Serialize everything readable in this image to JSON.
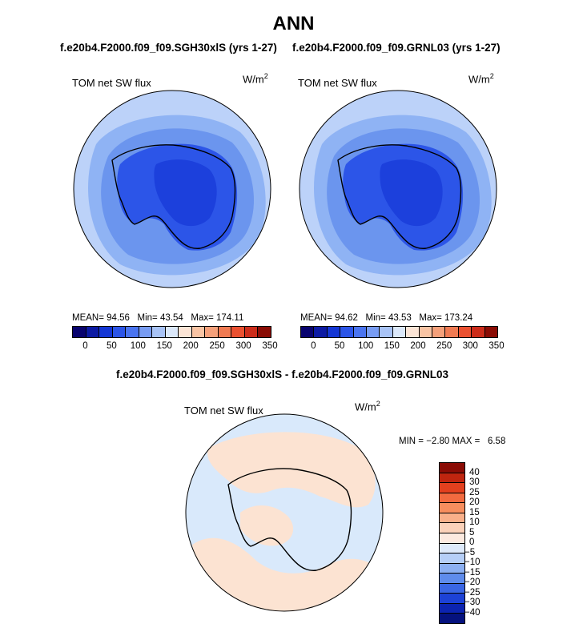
{
  "title": "ANN",
  "case_left": "f.e20b4.F2000.f09_f09.SGH30xlS (yrs 1-27)",
  "case_right": "f.e20b4.F2000.f09_f09.GRNL03 (yrs 1-27)",
  "diff_title": "f.e20b4.F2000.f09_f09.SGH30xlS - f.e20b4.F2000.f09_f09.GRNL03",
  "variable_label": "TOM net SW flux",
  "units": "W/m",
  "units_sup": "2",
  "panel_left": {
    "mean_label": "MEAN=",
    "mean": "94.56",
    "min_label": "Min=",
    "min": "43.54",
    "max_label": "Max=",
    "max": "174.11"
  },
  "panel_right": {
    "mean_label": "MEAN=",
    "mean": "94.62",
    "min_label": "Min=",
    "min": "43.53",
    "max_label": "Max=",
    "max": "173.24"
  },
  "panel_diff": {
    "min_label": "MIN =",
    "min": "−2.80",
    "max_label": "MAX =",
    "max": "6.58"
  },
  "colorbar_main": {
    "colors": [
      "#08036e",
      "#0c1aa3",
      "#1436d4",
      "#2c55e8",
      "#4a74f0",
      "#789cf3",
      "#a8c3f6",
      "#dbe8fa",
      "#fce5d6",
      "#f9c4a4",
      "#f5a07a",
      "#f07a52",
      "#ea5030",
      "#cc2c1a",
      "#8a0c05"
    ],
    "tick_labels": [
      "0",
      "50",
      "100",
      "150",
      "200",
      "250",
      "300",
      "350"
    ]
  },
  "colorbar_diff": {
    "colors": [
      "#8a0c05",
      "#bf250f",
      "#e3401e",
      "#f26a3f",
      "#f78e5e",
      "#f9b08a",
      "#fbd2ba",
      "#fceae0",
      "#deeafa",
      "#b6cff7",
      "#8cb0f2",
      "#5f8cec",
      "#3a66e4",
      "#1d42d6",
      "#0c24b0",
      "#05127e"
    ],
    "tick_labels": [
      "40",
      "30",
      "25",
      "20",
      "15",
      "10",
      "5",
      "0",
      "−5",
      "−10",
      "−15",
      "−20",
      "−25",
      "−30",
      "−40"
    ]
  },
  "map_colors": {
    "ocean_outer": "#bcd2f9",
    "ocean_band1": "#8fb3f4",
    "ocean_band2": "#6b95ee",
    "antarctica_edge": "#3d68e6",
    "antarctica_inner": "#2c55e8",
    "antarctica_core": "#1c40dc",
    "diff_pos": "#fce3d2",
    "diff_neg": "#d9e9fb"
  }
}
